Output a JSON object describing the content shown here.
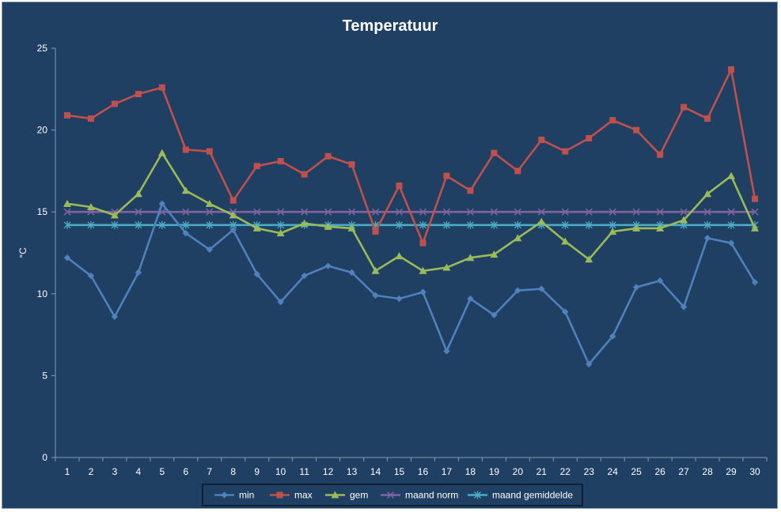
{
  "chart_data": {
    "type": "line",
    "title": "Temperatuur",
    "xlabel": "",
    "ylabel": "°C",
    "ylim": [
      0,
      25
    ],
    "yticks": [
      0,
      5,
      10,
      15,
      20,
      25
    ],
    "grid": false,
    "legend_position": "bottom",
    "x": [
      "1",
      "2",
      "3",
      "4",
      "5",
      "6",
      "7",
      "8",
      "9",
      "10",
      "11",
      "12",
      "13",
      "14",
      "15",
      "16",
      "17",
      "18",
      "19",
      "20",
      "21",
      "22",
      "23",
      "24",
      "25",
      "26",
      "27",
      "28",
      "29",
      "30"
    ],
    "series": [
      {
        "name": "min",
        "color": "#4f81bd",
        "marker": "diamond",
        "values": [
          12.2,
          11.1,
          8.6,
          11.3,
          15.5,
          13.7,
          12.7,
          13.9,
          11.2,
          9.5,
          11.1,
          11.7,
          11.3,
          9.9,
          9.7,
          10.1,
          6.5,
          9.7,
          8.7,
          10.2,
          10.3,
          8.9,
          5.7,
          7.4,
          10.4,
          10.8,
          9.2,
          13.4,
          13.1,
          10.7
        ]
      },
      {
        "name": "max",
        "color": "#c0504d",
        "marker": "square",
        "values": [
          20.9,
          20.7,
          21.6,
          22.2,
          22.6,
          18.8,
          18.7,
          15.7,
          17.8,
          18.1,
          17.3,
          18.4,
          17.9,
          13.8,
          16.6,
          13.1,
          17.2,
          16.3,
          18.6,
          17.5,
          19.4,
          18.7,
          19.5,
          20.6,
          20.0,
          18.5,
          21.4,
          20.7,
          23.7,
          15.8
        ]
      },
      {
        "name": "gem",
        "color": "#9bbb59",
        "marker": "triangle",
        "values": [
          15.5,
          15.3,
          14.8,
          16.1,
          18.6,
          16.3,
          15.5,
          14.8,
          14.0,
          13.7,
          14.3,
          14.1,
          14.0,
          11.4,
          12.3,
          11.4,
          11.6,
          12.2,
          12.4,
          13.4,
          14.4,
          13.2,
          12.1,
          13.8,
          14.0,
          14.0,
          14.5,
          16.1,
          17.2,
          14.0
        ]
      },
      {
        "name": "maand norm",
        "color": "#8064a2",
        "marker": "x",
        "values": [
          15.0,
          15.0,
          15.0,
          15.0,
          15.0,
          15.0,
          15.0,
          15.0,
          15.0,
          15.0,
          15.0,
          15.0,
          15.0,
          15.0,
          15.0,
          15.0,
          15.0,
          15.0,
          15.0,
          15.0,
          15.0,
          15.0,
          15.0,
          15.0,
          15.0,
          15.0,
          15.0,
          15.0,
          15.0,
          15.0
        ]
      },
      {
        "name": "maand gemiddelde",
        "color": "#4bacc6",
        "marker": "star",
        "values": [
          14.2,
          14.2,
          14.2,
          14.2,
          14.2,
          14.2,
          14.2,
          14.2,
          14.2,
          14.2,
          14.2,
          14.2,
          14.2,
          14.2,
          14.2,
          14.2,
          14.2,
          14.2,
          14.2,
          14.2,
          14.2,
          14.2,
          14.2,
          14.2,
          14.2,
          14.2,
          14.2,
          14.2,
          14.2,
          14.2
        ]
      }
    ],
    "colors": {
      "background": "#1f3f63",
      "axis": "#8a9bb0",
      "text": "#ffffff",
      "legend_border": "#000000"
    }
  }
}
